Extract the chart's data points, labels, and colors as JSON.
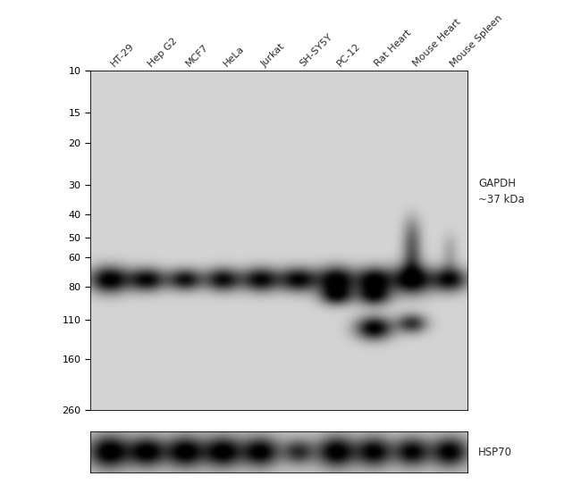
{
  "sample_labels": [
    "HT-29",
    "Hep G2",
    "MCF7",
    "HeLa",
    "Jurkat",
    "SH-SY5Y",
    "PC-12",
    "Rat Heart",
    "Mouse Heart",
    "Mouse Spleen"
  ],
  "mw_markers": [
    260,
    160,
    110,
    80,
    60,
    50,
    40,
    30,
    20,
    15,
    10
  ],
  "gapdh_label": "GAPDH\n~37 kDa",
  "hsp70_label": "HSP70",
  "figure_bg": "#ffffff",
  "panel_bg": 0.83,
  "ctrl_panel_bg": 0.78,
  "font_size_mw": 8,
  "font_size_label": 8
}
